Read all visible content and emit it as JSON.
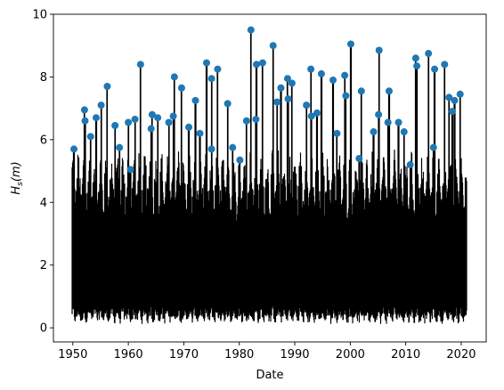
{
  "chart_data": {
    "type": "line",
    "title": "",
    "xlabel": "Date",
    "ylabel_base": "H",
    "ylabel_sub": "s",
    "ylabel_rest": "(m)",
    "xlim": [
      1946.5,
      2024.5
    ],
    "ylim": [
      -0.45,
      10.0
    ],
    "x_ticks": [
      1950,
      1960,
      1970,
      1980,
      1990,
      2000,
      2010,
      2020
    ],
    "y_ticks": [
      0,
      2,
      4,
      6,
      8,
      10
    ],
    "grid": false,
    "colors": {
      "line": "#000000",
      "markers": "#1f77b4"
    },
    "series": [
      {
        "type": "scatter",
        "points": [
          [
            1950.2,
            5.7
          ],
          [
            1952.1,
            6.95
          ],
          [
            1952.2,
            6.6
          ],
          [
            1953.2,
            6.1
          ],
          [
            1954.2,
            6.7
          ],
          [
            1955.1,
            7.1
          ],
          [
            1956.2,
            7.7
          ],
          [
            1957.6,
            6.45
          ],
          [
            1958.4,
            5.75
          ],
          [
            1960.0,
            6.55
          ],
          [
            1960.4,
            5.05
          ],
          [
            1961.2,
            6.65
          ],
          [
            1962.2,
            8.4
          ],
          [
            1964.1,
            6.35
          ],
          [
            1964.3,
            6.8
          ],
          [
            1965.3,
            6.7
          ],
          [
            1967.3,
            6.55
          ],
          [
            1968.1,
            6.75
          ],
          [
            1968.3,
            8.0
          ],
          [
            1969.6,
            7.65
          ],
          [
            1970.9,
            6.4
          ],
          [
            1972.1,
            7.25
          ],
          [
            1972.9,
            6.2
          ],
          [
            1974.1,
            8.45
          ],
          [
            1975.0,
            7.95
          ],
          [
            1975.0,
            5.7
          ],
          [
            1976.1,
            8.25
          ],
          [
            1977.9,
            7.15
          ],
          [
            1978.8,
            5.75
          ],
          [
            1980.1,
            5.35
          ],
          [
            1981.3,
            6.6
          ],
          [
            1982.1,
            9.5
          ],
          [
            1983.0,
            6.65
          ],
          [
            1983.1,
            8.4
          ],
          [
            1984.2,
            8.45
          ],
          [
            1986.1,
            9.0
          ],
          [
            1986.8,
            7.2
          ],
          [
            1987.5,
            7.65
          ],
          [
            1988.7,
            7.95
          ],
          [
            1988.8,
            7.3
          ],
          [
            1989.5,
            7.8
          ],
          [
            1992.1,
            7.1
          ],
          [
            1992.9,
            8.25
          ],
          [
            1993.0,
            6.75
          ],
          [
            1994.0,
            6.85
          ],
          [
            1994.8,
            8.1
          ],
          [
            1996.9,
            7.9
          ],
          [
            1997.6,
            6.2
          ],
          [
            1999.0,
            8.05
          ],
          [
            1999.2,
            7.4
          ],
          [
            2000.1,
            9.05
          ],
          [
            2001.6,
            5.4
          ],
          [
            2002.0,
            7.55
          ],
          [
            2004.2,
            6.25
          ],
          [
            2005.1,
            6.8
          ],
          [
            2005.2,
            8.85
          ],
          [
            2006.8,
            6.55
          ],
          [
            2007.0,
            7.55
          ],
          [
            2008.7,
            6.55
          ],
          [
            2009.7,
            6.25
          ],
          [
            2010.8,
            5.2
          ],
          [
            2011.8,
            8.6
          ],
          [
            2012.0,
            8.35
          ],
          [
            2014.1,
            8.75
          ],
          [
            2015.0,
            5.75
          ],
          [
            2015.2,
            8.25
          ],
          [
            2017.0,
            8.4
          ],
          [
            2017.8,
            7.35
          ],
          [
            2018.4,
            6.9
          ],
          [
            2018.8,
            7.25
          ],
          [
            2019.8,
            7.45
          ]
        ]
      }
    ]
  }
}
